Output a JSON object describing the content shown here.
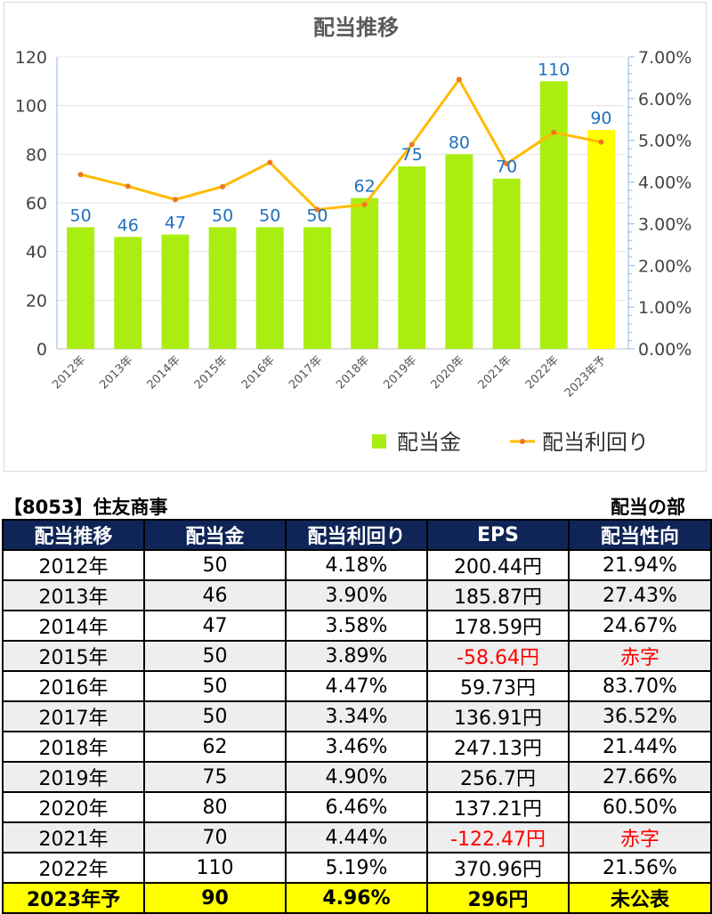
{
  "chart_data": {
    "type": "bar",
    "title": "配当推移",
    "categories": [
      "2012年",
      "2013年",
      "2014年",
      "2015年",
      "2016年",
      "2017年",
      "2018年",
      "2019年",
      "2020年",
      "2021年",
      "2022年",
      "2023年予"
    ],
    "series": [
      {
        "name": "配当金",
        "type": "bar",
        "axis": "left",
        "values": [
          50,
          46,
          47,
          50,
          50,
          50,
          62,
          75,
          80,
          70,
          110,
          90
        ],
        "color": "#aaee11",
        "highlight_color": "#ffff00"
      },
      {
        "name": "配当利回り",
        "type": "line",
        "axis": "right",
        "values": [
          0.0418,
          0.039,
          0.0358,
          0.0389,
          0.0447,
          0.0334,
          0.0346,
          0.049,
          0.0646,
          0.0444,
          0.0519,
          0.0496
        ],
        "color": "#ffbb00",
        "marker_color": "#ee7722"
      }
    ],
    "y_left": {
      "ylim": [
        0,
        120
      ],
      "ticks": [
        "0",
        "20",
        "40",
        "60",
        "80",
        "100",
        "120"
      ]
    },
    "y_right": {
      "ylim": [
        0,
        0.07
      ],
      "ticks": [
        "0.00%",
        "1.00%",
        "2.00%",
        "3.00%",
        "4.00%",
        "5.00%",
        "6.00%",
        "7.00%"
      ]
    },
    "data_labels": [
      "50",
      "46",
      "47",
      "50",
      "50",
      "50",
      "62",
      "75",
      "80",
      "70",
      "110",
      "90"
    ],
    "legend_position": "bottom-right",
    "grid": true
  },
  "table": {
    "company": "【8053】住友商事",
    "section": "配当の部",
    "headers": [
      "配当推移",
      "配当金",
      "配当利回り",
      "EPS",
      "配当性向"
    ],
    "rows": [
      {
        "cells": [
          "2012年",
          "50",
          "4.18%",
          "200.44円",
          "21.94%"
        ],
        "negative": false
      },
      {
        "cells": [
          "2013年",
          "46",
          "3.90%",
          "185.87円",
          "27.43%"
        ],
        "negative": false
      },
      {
        "cells": [
          "2014年",
          "47",
          "3.58%",
          "178.59円",
          "24.67%"
        ],
        "negative": false
      },
      {
        "cells": [
          "2015年",
          "50",
          "3.89%",
          "-58.64円",
          "赤字"
        ],
        "negative": true
      },
      {
        "cells": [
          "2016年",
          "50",
          "4.47%",
          "59.73円",
          "83.70%"
        ],
        "negative": false
      },
      {
        "cells": [
          "2017年",
          "50",
          "3.34%",
          "136.91円",
          "36.52%"
        ],
        "negative": false
      },
      {
        "cells": [
          "2018年",
          "62",
          "3.46%",
          "247.13円",
          "21.44%"
        ],
        "negative": false
      },
      {
        "cells": [
          "2019年",
          "75",
          "4.90%",
          "256.7円",
          "27.66%"
        ],
        "negative": false
      },
      {
        "cells": [
          "2020年",
          "80",
          "6.46%",
          "137.21円",
          "60.50%"
        ],
        "negative": false
      },
      {
        "cells": [
          "2021年",
          "70",
          "4.44%",
          "-122.47円",
          "赤字"
        ],
        "negative": true
      },
      {
        "cells": [
          "2022年",
          "110",
          "5.19%",
          "370.96円",
          "21.56%"
        ],
        "negative": false
      },
      {
        "cells": [
          "2023年予",
          "90",
          "4.96%",
          "296円",
          "未公表"
        ],
        "negative": false,
        "forecast": true
      }
    ]
  }
}
